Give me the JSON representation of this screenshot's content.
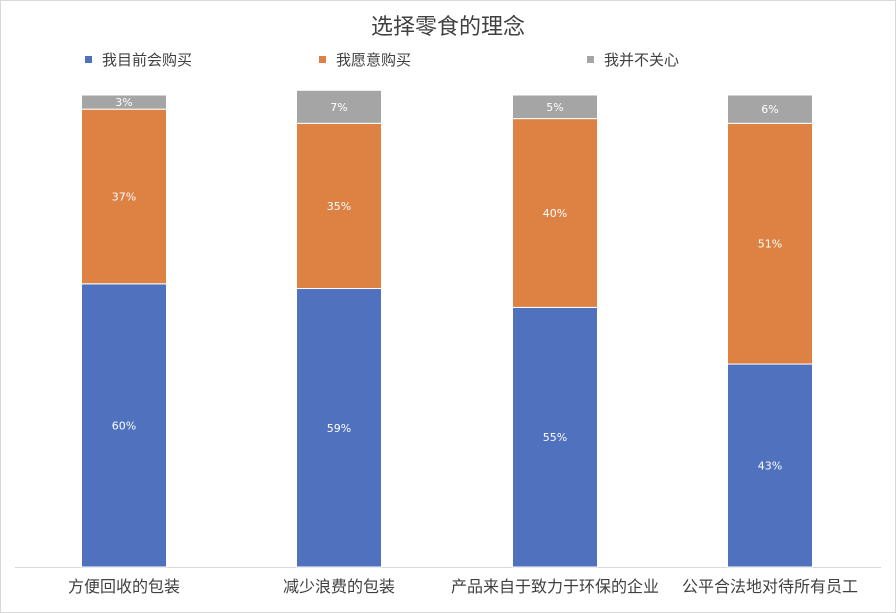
{
  "chart_data": {
    "type": "bar",
    "stacked": true,
    "title": "选择零食的理念",
    "categories": [
      "方便回收的包装",
      "减少浪费的包装",
      "产品来自于致力于环保的企业",
      "公平合法地对待所有员工"
    ],
    "series": [
      {
        "name": "我目前会购买",
        "color": "#4f71be",
        "values": [
          60,
          59,
          55,
          43
        ],
        "labels": [
          "60%",
          "59%",
          "55%",
          "43%"
        ]
      },
      {
        "name": "我愿意购买",
        "color": "#de8244",
        "values": [
          37,
          35,
          40,
          51
        ],
        "labels": [
          "37%",
          "35%",
          "40%",
          "51%"
        ]
      },
      {
        "name": "我并不关心",
        "color": "#a5a5a5",
        "values": [
          3,
          7,
          5,
          6
        ],
        "labels": [
          "3%",
          "7%",
          "5%",
          "6%"
        ]
      }
    ],
    "ylim": [
      0,
      100
    ],
    "grid": false,
    "legend_position": "top"
  }
}
